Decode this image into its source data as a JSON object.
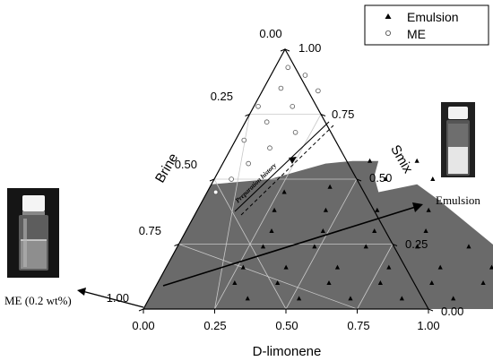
{
  "chart_data": {
    "type": "scatter",
    "subtype": "ternary",
    "axes": {
      "bottom": {
        "label": "D-limonene",
        "ticks": [
          "0.00",
          "0.25",
          "0.50",
          "0.75",
          "1.00"
        ]
      },
      "right": {
        "label": "Smix",
        "ticks": [
          "0.00",
          "0.25",
          "0.50",
          "0.75",
          "1.00"
        ]
      },
      "left": {
        "label": "Brine",
        "ticks": [
          "0.00",
          "0.25",
          "0.50",
          "0.75",
          "1.00"
        ]
      }
    },
    "grid": true,
    "legend": {
      "position": "top-right",
      "entries": [
        "Emulsion",
        "ME"
      ]
    },
    "series": [
      {
        "name": "Emulsion",
        "marker": "filled-triangle",
        "points_ab": [
          [
            0.23,
            0.04
          ],
          [
            0.35,
            0.04
          ],
          [
            0.47,
            0.04
          ],
          [
            0.59,
            0.04
          ],
          [
            0.71,
            0.04
          ],
          [
            0.83,
            0.04
          ],
          [
            0.18,
            0.1
          ],
          [
            0.28,
            0.1
          ],
          [
            0.4,
            0.1
          ],
          [
            0.52,
            0.1
          ],
          [
            0.64,
            0.1
          ],
          [
            0.76,
            0.1
          ],
          [
            0.18,
            0.16
          ],
          [
            0.28,
            0.16
          ],
          [
            0.4,
            0.16
          ],
          [
            0.52,
            0.16
          ],
          [
            0.64,
            0.16
          ],
          [
            0.76,
            0.16
          ],
          [
            0.2,
            0.24
          ],
          [
            0.32,
            0.24
          ],
          [
            0.44,
            0.24
          ],
          [
            0.56,
            0.24
          ],
          [
            0.68,
            0.24
          ],
          [
            0.2,
            0.3
          ],
          [
            0.32,
            0.3
          ],
          [
            0.44,
            0.3
          ],
          [
            0.56,
            0.3
          ],
          [
            0.18,
            0.38
          ],
          [
            0.3,
            0.38
          ],
          [
            0.42,
            0.38
          ],
          [
            0.54,
            0.38
          ],
          [
            0.18,
            0.45
          ],
          [
            0.28,
            0.47
          ],
          [
            0.4,
            0.5
          ],
          [
            0.51,
            0.5
          ],
          [
            0.34,
            0.57
          ],
          [
            0.45,
            0.57
          ]
        ]
      },
      {
        "name": "ME",
        "marker": "open-circle",
        "points_ab": [
          [
            0.02,
            0.45
          ],
          [
            0.04,
            0.5
          ],
          [
            0.06,
            0.56
          ],
          [
            0.09,
            0.62
          ],
          [
            0.13,
            0.68
          ],
          [
            0.02,
            0.65
          ],
          [
            0.05,
            0.72
          ],
          [
            0.09,
            0.78
          ],
          [
            0.13,
            0.84
          ],
          [
            0.01,
            0.78
          ],
          [
            0.04,
            0.85
          ],
          [
            0.08,
            0.9
          ],
          [
            0.03,
            0.93
          ]
        ]
      }
    ],
    "emulsion_region_ab": [
      [
        0,
        0
      ],
      [
        1,
        0
      ],
      [
        0.55,
        0.42
      ],
      [
        0.48,
        0.48
      ],
      [
        0.4,
        0.45
      ],
      [
        0.37,
        0.51
      ],
      [
        0.36,
        0.57
      ],
      [
        0.3,
        0.57
      ],
      [
        0.24,
        0.56
      ],
      [
        0.13,
        0.5
      ],
      [
        0,
        0.48
      ]
    ],
    "annotations": [
      {
        "text": "Preparation history",
        "style": "dashed arrow, bold italic"
      },
      {
        "text": "ME (0.2 wt%)"
      },
      {
        "text": "Emulsion"
      }
    ],
    "colors": {
      "region": "#6a6a6a",
      "grid": "#c8c8c8",
      "frame": "#000000",
      "bottle_cap": "#ffffff"
    }
  }
}
